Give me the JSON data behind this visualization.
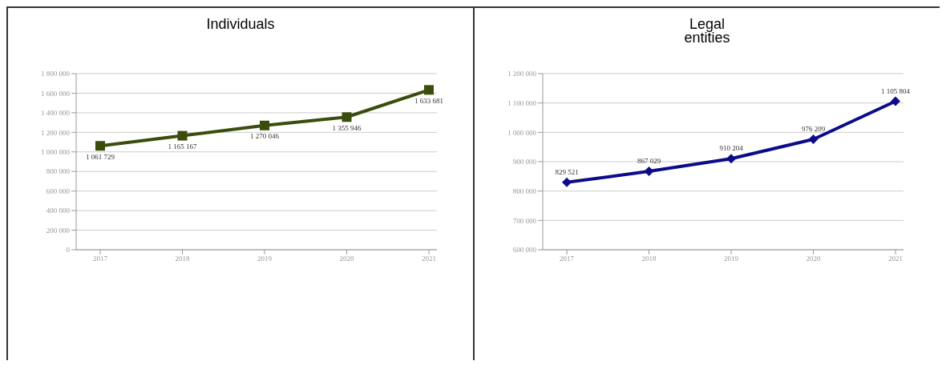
{
  "chart_data": [
    {
      "type": "line",
      "title": "Individuals",
      "categories": [
        "2017",
        "2018",
        "2019",
        "2020",
        "2021"
      ],
      "series": [
        {
          "color": "#3a4d0c",
          "values": [
            1061729,
            1165167,
            1270046,
            1355946,
            1633681
          ],
          "value_labels": [
            "1 061 729",
            "1 165 167",
            "1 270 046",
            "1 355 946",
            "1 633 681"
          ]
        }
      ],
      "ylim": [
        0,
        1800000
      ],
      "yticks": [
        0,
        {
          "value": 200000,
          "label": "200 000"
        },
        {
          "value": 400000,
          "label": "400 000"
        },
        {
          "value": 600000,
          "label": "600 000"
        },
        {
          "value": 800000,
          "label": "800 000"
        },
        {
          "value": 1000000,
          "label": "1 000 000"
        },
        {
          "value": 1200000,
          "label": "1 200 000"
        },
        {
          "value": 1400000,
          "label": "1 400 000"
        },
        {
          "value": 1600000,
          "label": "1 600 000"
        },
        {
          "value": 1800000,
          "label": "1 800 000"
        }
      ],
      "grid": "y",
      "marker": "square",
      "line_style": "solid",
      "legend": false
    },
    {
      "type": "line",
      "title": "Legal\nentities",
      "categories": [
        "2017",
        "2018",
        "2019",
        "2020",
        "2021"
      ],
      "series": [
        {
          "color": "#0c0c8a",
          "values": [
            829521,
            867029,
            910204,
            976209,
            1105804
          ],
          "value_labels": [
            "829 521",
            "867 029",
            "910 204",
            "976 209",
            "1 105 804"
          ]
        }
      ],
      "ylim": [
        600000,
        1200000
      ],
      "yticks": [
        {
          "value": 600000,
          "label": "600 000"
        },
        {
          "value": 700000,
          "label": "700 000"
        },
        {
          "value": 800000,
          "label": "800 000"
        },
        {
          "value": 900000,
          "label": "900 000"
        },
        {
          "value": 1000000,
          "label": "1 000 000"
        },
        {
          "value": 1100000,
          "label": "1 100 000"
        },
        {
          "value": 1200000,
          "label": "1 200 000"
        }
      ],
      "grid": "y",
      "marker": "diamond",
      "line_style": "solid",
      "legend": false
    }
  ]
}
